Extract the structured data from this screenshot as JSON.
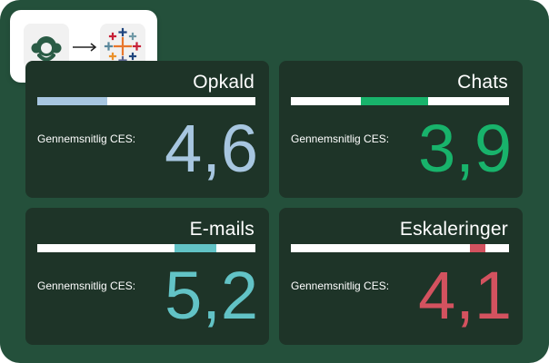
{
  "cards": [
    {
      "title": "Opkald",
      "label": "Gennemsnitlig CES:",
      "value": "4,6",
      "color": "#a7c6e0",
      "bar_start": 0.0,
      "bar_end": 0.32
    },
    {
      "title": "Chats",
      "label": "Gennemsnitlig CES:",
      "value": "3,9",
      "color": "#18b36b",
      "bar_start": 0.32,
      "bar_end": 0.63
    },
    {
      "title": "E-mails",
      "label": "Gennemsnitlig CES:",
      "value": "5,2",
      "color": "#62c3c6",
      "bar_start": 0.63,
      "bar_end": 0.82
    },
    {
      "title": "Eskaleringer",
      "label": "Gennemsnitlig CES:",
      "value": "4,1",
      "color": "#d3525f",
      "bar_start": 0.82,
      "bar_end": 0.89
    }
  ],
  "integration": {
    "from_icon": "surveymonkey-logo-icon",
    "arrow_icon": "arrow-right-icon",
    "to_icon": "tableau-logo-icon"
  }
}
